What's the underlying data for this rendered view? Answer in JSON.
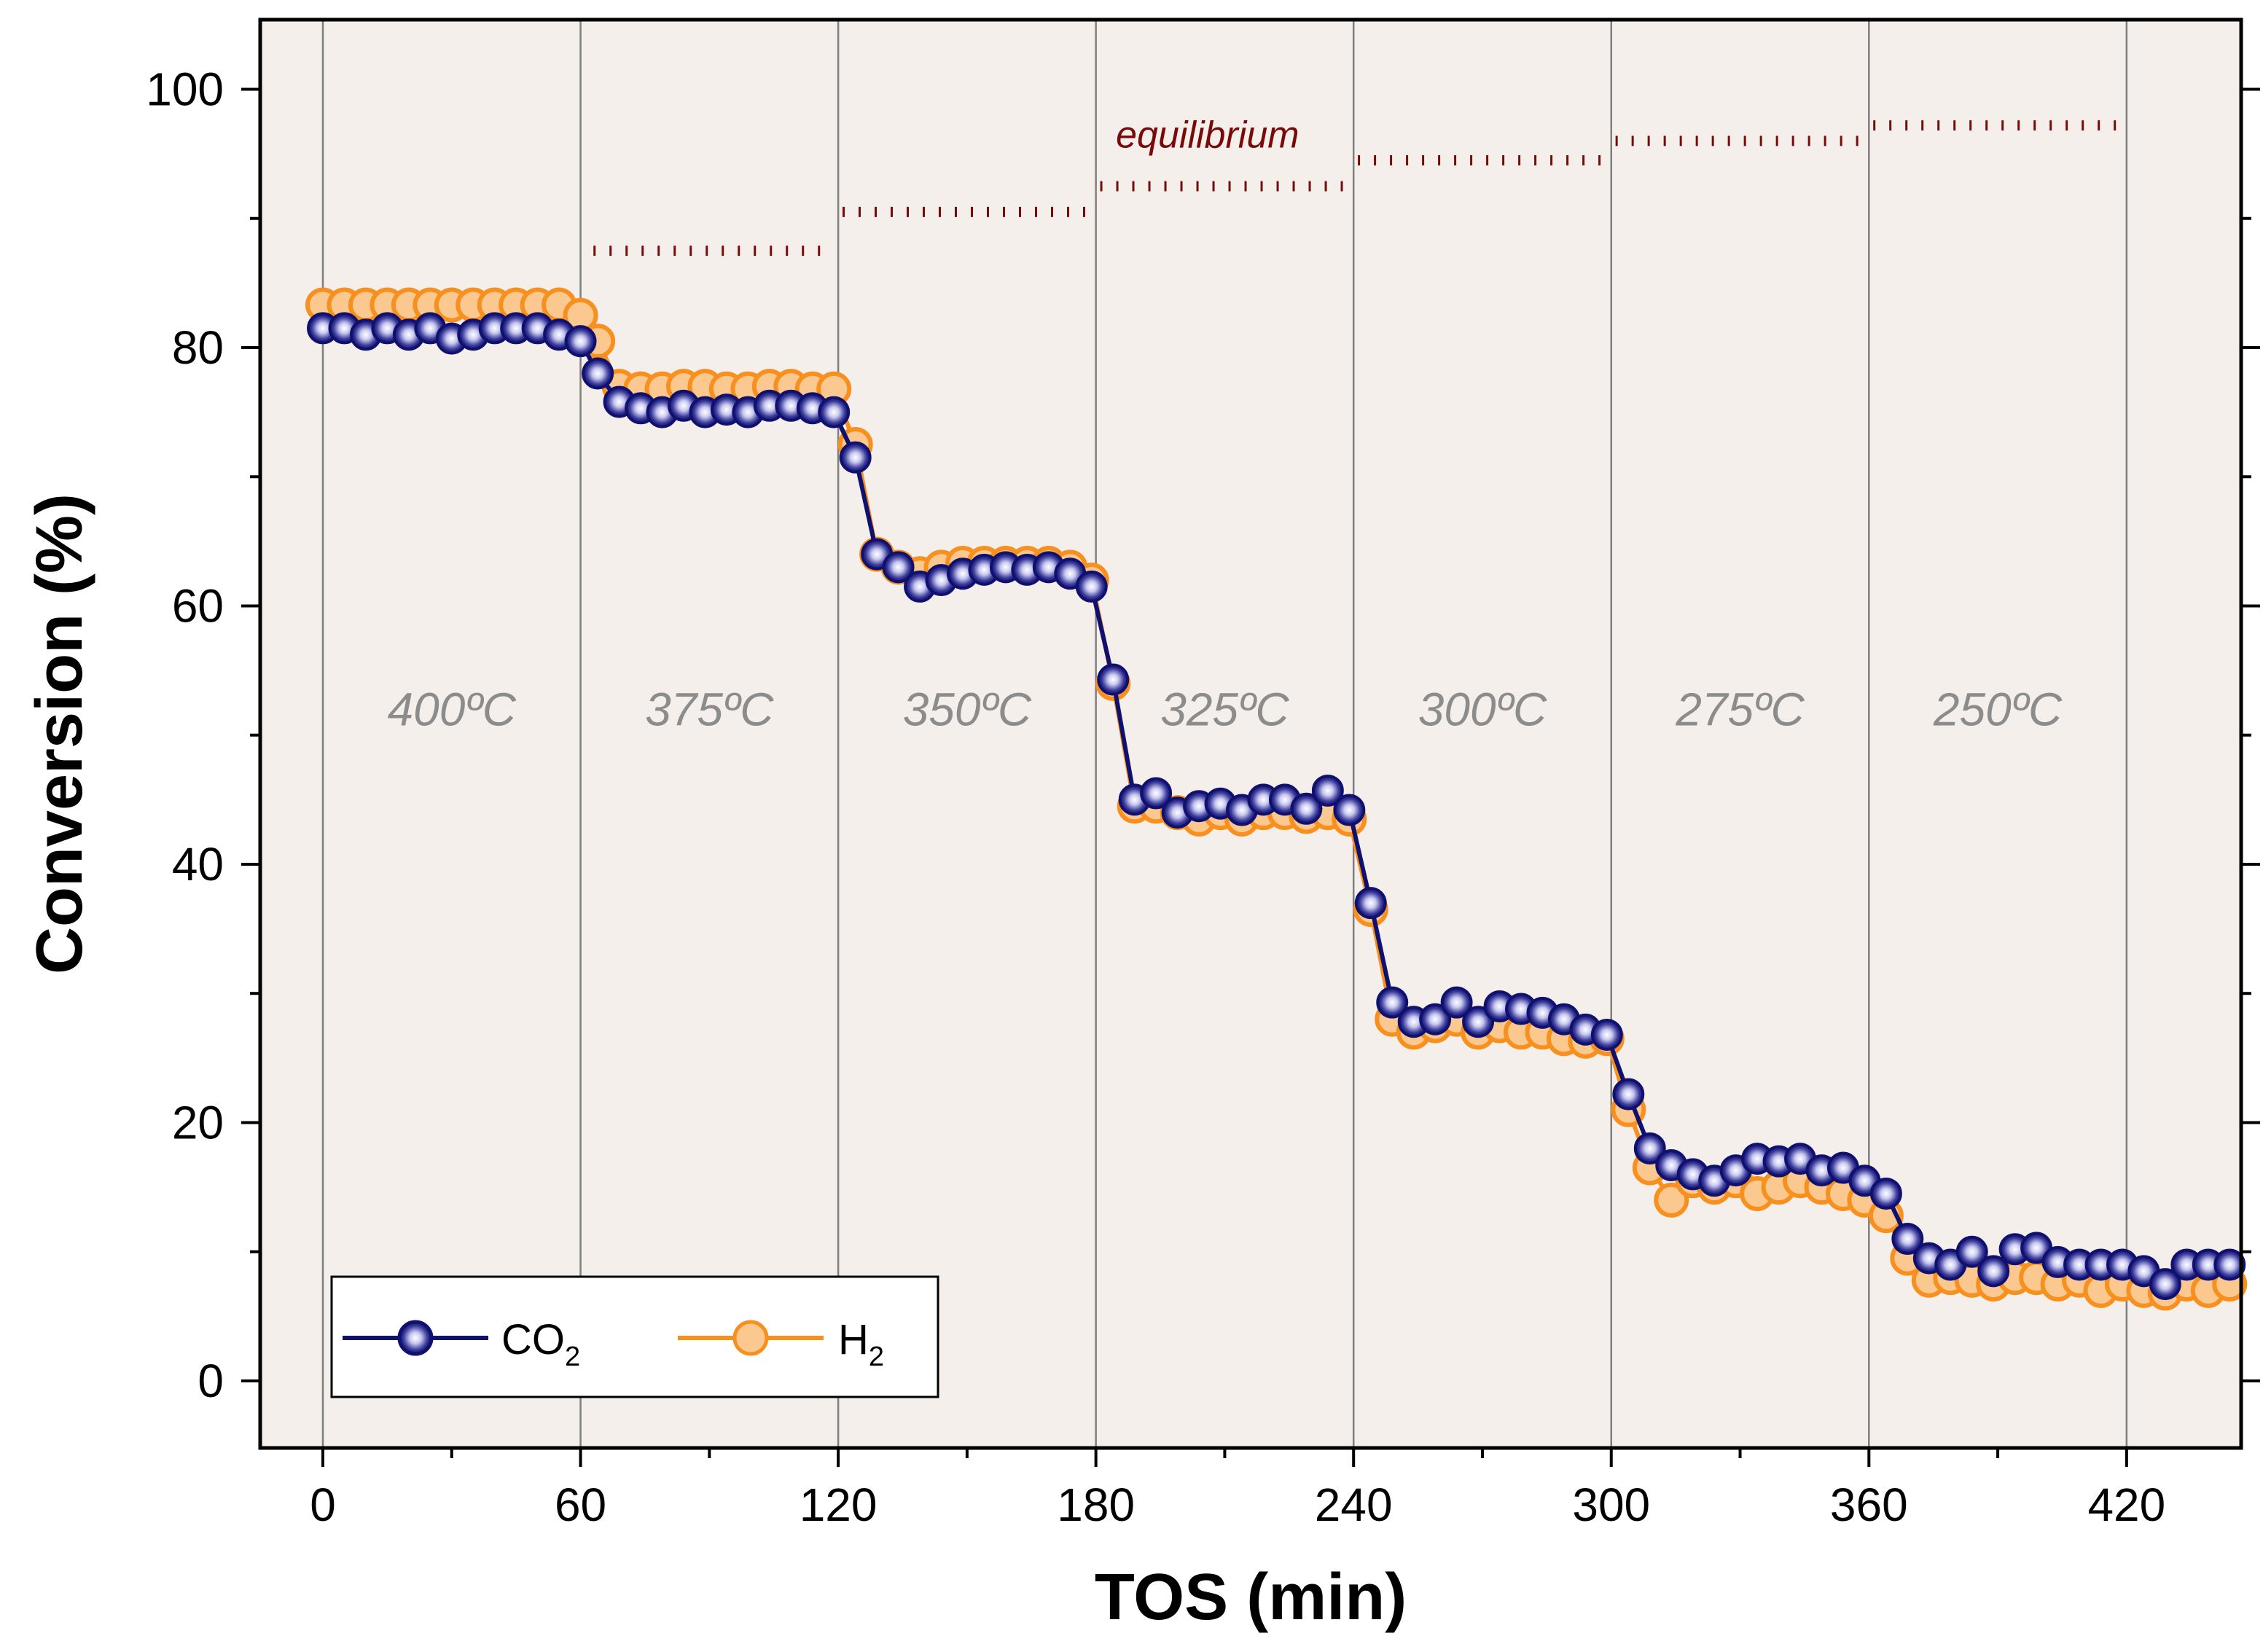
{
  "chart_data": {
    "type": "line",
    "title": "",
    "xlabel": "TOS (min)",
    "ylabel": "Conversion (%)",
    "xlim": [
      -15,
      445
    ],
    "ylim": [
      -5,
      105
    ],
    "xticks": [
      0,
      60,
      120,
      180,
      240,
      300,
      360,
      420
    ],
    "yticks": [
      0,
      20,
      40,
      60,
      80,
      100
    ],
    "grid": false,
    "legend_position": "bottom-left",
    "colors": {
      "plot_background": "#f4efeb",
      "co2": "#10106e",
      "h2": "#f7901e",
      "h2_fill": "#fbc98f",
      "equilibrium": "#7a0a0a",
      "temperature_text": "#8c8c8c",
      "divider": "#7f7f7f"
    },
    "temperature_segments": [
      {
        "label": "400ºC",
        "x_start": 0,
        "x_end": 60
      },
      {
        "label": "375ºC",
        "x_start": 60,
        "x_end": 120
      },
      {
        "label": "350ºC",
        "x_start": 120,
        "x_end": 180
      },
      {
        "label": "325ºC",
        "x_start": 180,
        "x_end": 240
      },
      {
        "label": "300ºC",
        "x_start": 240,
        "x_end": 300
      },
      {
        "label": "275ºC",
        "x_start": 300,
        "x_end": 360
      },
      {
        "label": "250ºC",
        "x_start": 360,
        "x_end": 420
      }
    ],
    "equilibrium": {
      "label": "equilibrium",
      "levels": [
        {
          "x_start": 63,
          "x_end": 118,
          "y": 87.5
        },
        {
          "x_start": 121,
          "x_end": 179,
          "y": 90.5
        },
        {
          "x_start": 181,
          "x_end": 239,
          "y": 92.5
        },
        {
          "x_start": 241,
          "x_end": 299,
          "y": 94.5
        },
        {
          "x_start": 301,
          "x_end": 359,
          "y": 96.0
        },
        {
          "x_start": 361,
          "x_end": 419,
          "y": 97.2
        }
      ]
    },
    "series": [
      {
        "name": "CO2",
        "legend_main": "CO",
        "legend_sub": "2",
        "points": [
          [
            0,
            81.5
          ],
          [
            5,
            81.5
          ],
          [
            10,
            81.0
          ],
          [
            15,
            81.5
          ],
          [
            20,
            81.0
          ],
          [
            25,
            81.5
          ],
          [
            30,
            80.7
          ],
          [
            35,
            81.0
          ],
          [
            40,
            81.5
          ],
          [
            45,
            81.5
          ],
          [
            50,
            81.5
          ],
          [
            55,
            81.0
          ],
          [
            60,
            80.5
          ],
          [
            64,
            78.0
          ],
          [
            69,
            75.8
          ],
          [
            74,
            75.3
          ],
          [
            79,
            75.0
          ],
          [
            84,
            75.5
          ],
          [
            89,
            75.0
          ],
          [
            94,
            75.2
          ],
          [
            99,
            75.0
          ],
          [
            104,
            75.5
          ],
          [
            109,
            75.5
          ],
          [
            114,
            75.3
          ],
          [
            119,
            75.0
          ],
          [
            124,
            71.5
          ],
          [
            129,
            64.0
          ],
          [
            134,
            63.0
          ],
          [
            139,
            61.5
          ],
          [
            144,
            62.0
          ],
          [
            149,
            62.5
          ],
          [
            154,
            62.8
          ],
          [
            159,
            63.0
          ],
          [
            164,
            62.8
          ],
          [
            169,
            63.0
          ],
          [
            174,
            62.5
          ],
          [
            179,
            61.5
          ],
          [
            184,
            54.3
          ],
          [
            189,
            45.0
          ],
          [
            194,
            45.5
          ],
          [
            199,
            44.0
          ],
          [
            204,
            44.5
          ],
          [
            209,
            44.7
          ],
          [
            214,
            44.2
          ],
          [
            219,
            45.0
          ],
          [
            224,
            45.0
          ],
          [
            229,
            44.3
          ],
          [
            234,
            45.7
          ],
          [
            239,
            44.2
          ],
          [
            244,
            37.0
          ],
          [
            249,
            29.3
          ],
          [
            254,
            27.8
          ],
          [
            259,
            28.0
          ],
          [
            264,
            29.3
          ],
          [
            269,
            27.8
          ],
          [
            274,
            29.0
          ],
          [
            279,
            28.8
          ],
          [
            284,
            28.5
          ],
          [
            289,
            28.0
          ],
          [
            294,
            27.2
          ],
          [
            299,
            26.8
          ],
          [
            304,
            22.2
          ],
          [
            309,
            18.0
          ],
          [
            314,
            16.7
          ],
          [
            319,
            16.0
          ],
          [
            324,
            15.5
          ],
          [
            329,
            16.3
          ],
          [
            334,
            17.2
          ],
          [
            339,
            17.0
          ],
          [
            344,
            17.2
          ],
          [
            349,
            16.3
          ],
          [
            354,
            16.5
          ],
          [
            359,
            15.5
          ],
          [
            364,
            14.5
          ],
          [
            369,
            11.0
          ],
          [
            374,
            9.5
          ],
          [
            379,
            9.0
          ],
          [
            384,
            10.0
          ],
          [
            389,
            8.5
          ],
          [
            394,
            10.2
          ],
          [
            399,
            10.3
          ],
          [
            404,
            9.2
          ],
          [
            409,
            9.0
          ],
          [
            414,
            9.0
          ],
          [
            419,
            9.0
          ],
          [
            424,
            8.5
          ],
          [
            429,
            7.5
          ],
          [
            434,
            9.0
          ],
          [
            439,
            9.0
          ],
          [
            444,
            9.0
          ]
        ]
      },
      {
        "name": "H2",
        "legend_main": "H",
        "legend_sub": "2",
        "points": [
          [
            0,
            83.3
          ],
          [
            5,
            83.3
          ],
          [
            10,
            83.3
          ],
          [
            15,
            83.3
          ],
          [
            20,
            83.3
          ],
          [
            25,
            83.3
          ],
          [
            30,
            83.3
          ],
          [
            35,
            83.3
          ],
          [
            40,
            83.3
          ],
          [
            45,
            83.3
          ],
          [
            50,
            83.3
          ],
          [
            55,
            83.3
          ],
          [
            60,
            82.5
          ],
          [
            64,
            80.5
          ],
          [
            69,
            77.0
          ],
          [
            74,
            76.8
          ],
          [
            79,
            76.8
          ],
          [
            84,
            77.0
          ],
          [
            89,
            77.0
          ],
          [
            94,
            76.8
          ],
          [
            99,
            76.8
          ],
          [
            104,
            77.0
          ],
          [
            109,
            77.0
          ],
          [
            114,
            76.8
          ],
          [
            119,
            76.8
          ],
          [
            124,
            72.5
          ],
          [
            129,
            64.0
          ],
          [
            134,
            63.0
          ],
          [
            139,
            62.5
          ],
          [
            144,
            63.0
          ],
          [
            149,
            63.3
          ],
          [
            154,
            63.3
          ],
          [
            159,
            63.3
          ],
          [
            164,
            63.3
          ],
          [
            169,
            63.3
          ],
          [
            174,
            63.0
          ],
          [
            179,
            62.0
          ],
          [
            184,
            54.0
          ],
          [
            189,
            44.5
          ],
          [
            194,
            44.5
          ],
          [
            199,
            44.0
          ],
          [
            204,
            43.5
          ],
          [
            209,
            44.0
          ],
          [
            214,
            43.5
          ],
          [
            219,
            44.0
          ],
          [
            224,
            44.0
          ],
          [
            229,
            43.7
          ],
          [
            234,
            44.0
          ],
          [
            239,
            43.5
          ],
          [
            244,
            36.5
          ],
          [
            249,
            28.0
          ],
          [
            254,
            27.0
          ],
          [
            259,
            27.5
          ],
          [
            264,
            28.0
          ],
          [
            269,
            27.0
          ],
          [
            274,
            27.5
          ],
          [
            279,
            27.0
          ],
          [
            284,
            27.0
          ],
          [
            289,
            26.5
          ],
          [
            294,
            26.3
          ],
          [
            299,
            26.5
          ],
          [
            304,
            21.0
          ],
          [
            309,
            16.5
          ],
          [
            314,
            14.0
          ],
          [
            319,
            15.5
          ],
          [
            324,
            15.0
          ],
          [
            329,
            15.5
          ],
          [
            334,
            14.5
          ],
          [
            339,
            15.0
          ],
          [
            344,
            15.5
          ],
          [
            349,
            15.0
          ],
          [
            354,
            14.5
          ],
          [
            359,
            14.0
          ],
          [
            364,
            12.8
          ],
          [
            369,
            9.5
          ],
          [
            374,
            7.8
          ],
          [
            379,
            8.0
          ],
          [
            384,
            7.8
          ],
          [
            389,
            7.5
          ],
          [
            394,
            8.0
          ],
          [
            399,
            8.0
          ],
          [
            404,
            7.5
          ],
          [
            409,
            7.8
          ],
          [
            414,
            7.0
          ],
          [
            419,
            7.5
          ],
          [
            424,
            7.0
          ],
          [
            429,
            6.8
          ],
          [
            434,
            7.5
          ],
          [
            439,
            7.0
          ],
          [
            444,
            7.5
          ]
        ]
      }
    ]
  }
}
